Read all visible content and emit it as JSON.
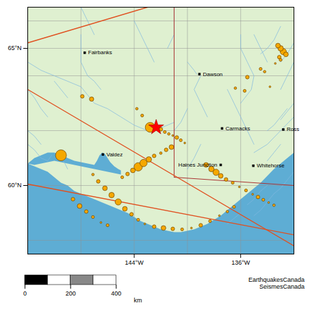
{
  "chart_data": {
    "type": "map",
    "xlim": [
      -152,
      -132
    ],
    "ylim": [
      57.5,
      66.5
    ],
    "xticks": [
      {
        "value": -144,
        "label": "144°W"
      },
      {
        "value": -136,
        "label": "136°W"
      }
    ],
    "yticks": [
      {
        "value": 60,
        "label": "60°N"
      },
      {
        "value": 65,
        "label": "65°N"
      }
    ],
    "land_color": "#dff0d0",
    "water_color": "#5eadd4",
    "fjord_color": "#5eadd4",
    "grid_color": "#909090",
    "fault_color": "#e05020",
    "border_color": "#aa3333",
    "river_color": "#80b8e0",
    "lat_lines": [
      58,
      60,
      62,
      64,
      65,
      66
    ],
    "lon_lines": [
      -152,
      -148,
      -144,
      -140,
      -136,
      -132
    ],
    "water_polygon": [
      [
        -152,
        57.5
      ],
      [
        -152,
        60.8
      ],
      [
        -151.5,
        60.7
      ],
      [
        -151,
        60.6
      ],
      [
        -150.5,
        60.5
      ],
      [
        -150,
        60.3
      ],
      [
        -149.5,
        60.1
      ],
      [
        -149,
        60.0
      ],
      [
        -148.5,
        59.8
      ],
      [
        -148,
        59.7
      ],
      [
        -147.5,
        59.6
      ],
      [
        -147,
        59.5
      ],
      [
        -146.5,
        59.4
      ],
      [
        -146,
        59.3
      ],
      [
        -145.5,
        59.2
      ],
      [
        -145,
        59.1
      ],
      [
        -144.5,
        59.0
      ],
      [
        -144,
        58.85
      ],
      [
        -143.5,
        58.7
      ],
      [
        -143,
        58.6
      ],
      [
        -142.5,
        58.5
      ],
      [
        -142,
        58.4
      ],
      [
        -141.5,
        58.35
      ],
      [
        -141,
        58.3
      ],
      [
        -140.5,
        58.3
      ],
      [
        -140,
        58.35
      ],
      [
        -139.5,
        58.4
      ],
      [
        -139,
        58.5
      ],
      [
        -138.5,
        58.6
      ],
      [
        -138,
        58.75
      ],
      [
        -137.5,
        58.9
      ],
      [
        -137,
        59.1
      ],
      [
        -136.5,
        59.3
      ],
      [
        -136,
        59.5
      ],
      [
        -135.5,
        59.7
      ],
      [
        -135,
        59.9
      ],
      [
        -134.5,
        60.1
      ],
      [
        -134,
        60.35
      ],
      [
        -133.5,
        60.6
      ],
      [
        -133,
        60.8
      ],
      [
        -132.5,
        61.0
      ],
      [
        -132,
        61.2
      ],
      [
        -132,
        57.5
      ]
    ],
    "fjord_polygon": [
      [
        -152,
        60.8
      ],
      [
        -151.5,
        61.0
      ],
      [
        -151,
        61.1
      ],
      [
        -150.5,
        61.2
      ],
      [
        -150,
        61.2
      ],
      [
        -149.5,
        61.1
      ],
      [
        -149,
        61.0
      ],
      [
        -148.5,
        60.9
      ],
      [
        -148,
        60.85
      ],
      [
        -147.5,
        60.8
      ],
      [
        -147,
        60.75
      ],
      [
        -146.8,
        60.9
      ],
      [
        -146.6,
        61.1
      ],
      [
        -146.4,
        61.2
      ],
      [
        -146.2,
        61.15
      ],
      [
        -146.0,
        61.0
      ],
      [
        -145.8,
        60.85
      ],
      [
        -145.5,
        60.7
      ],
      [
        -145.2,
        60.6
      ],
      [
        -145.0,
        60.55
      ],
      [
        -145.0,
        60.4
      ],
      [
        -145.5,
        60.45
      ],
      [
        -146.0,
        60.5
      ],
      [
        -146.5,
        60.55
      ],
      [
        -147.0,
        60.6
      ],
      [
        -147.5,
        60.65
      ],
      [
        -148.0,
        60.7
      ],
      [
        -148.5,
        60.75
      ],
      [
        -149.0,
        60.8
      ],
      [
        -149.5,
        60.85
      ],
      [
        -150.0,
        60.9
      ],
      [
        -150.5,
        60.85
      ],
      [
        -151.0,
        60.8
      ],
      [
        -151.5,
        60.75
      ],
      [
        -152,
        60.8
      ]
    ],
    "fault_lines": [
      {
        "x": [
          -152,
          -143
        ],
        "y": [
          65.2,
          66.5
        ]
      },
      {
        "x": [
          -152,
          -132
        ],
        "y": [
          63.5,
          57.8
        ]
      },
      {
        "x": [
          -152,
          -132
        ],
        "y": [
          60.05,
          58.2
        ]
      }
    ],
    "border_lines": [
      {
        "x": [
          -141,
          -141
        ],
        "y": [
          60.3,
          66.5
        ]
      },
      {
        "x": [
          -132,
          -141
        ],
        "y": [
          60.0,
          60.3
        ]
      }
    ],
    "rivers": [
      [
        [
          -152,
          64.5
        ],
        [
          -151,
          64.2
        ],
        [
          -150,
          64.0
        ],
        [
          -149,
          63.8
        ],
        [
          -148,
          63.6
        ],
        [
          -147.5,
          63.3
        ],
        [
          -147,
          63.0
        ],
        [
          -146,
          62.8
        ],
        [
          -145,
          62.5
        ],
        [
          -144,
          62.2
        ],
        [
          -143,
          62.0
        ],
        [
          -142,
          62.1
        ],
        [
          -141,
          62.3
        ]
      ],
      [
        [
          -148,
          65.5
        ],
        [
          -148,
          64.5
        ],
        [
          -147.5,
          64.0
        ],
        [
          -147,
          63.8
        ],
        [
          -146.5,
          63.5
        ]
      ],
      [
        [
          -137,
          63.5
        ],
        [
          -136.5,
          63.0
        ],
        [
          -136,
          62.5
        ],
        [
          -135.5,
          62.0
        ],
        [
          -135,
          61.5
        ]
      ],
      [
        [
          -139,
          64.0
        ],
        [
          -139.5,
          63.5
        ],
        [
          -139,
          63.0
        ],
        [
          -138.5,
          62.5
        ]
      ],
      [
        [
          -132,
          62.5
        ],
        [
          -133,
          62.0
        ],
        [
          -134,
          61.5
        ],
        [
          -135,
          61.2
        ]
      ],
      [
        [
          -140,
          62.8
        ],
        [
          -140.5,
          62.3
        ],
        [
          -141,
          62.0
        ]
      ],
      [
        [
          -139,
          61.5
        ],
        [
          -139.5,
          61.0
        ],
        [
          -140,
          60.6
        ]
      ],
      [
        [
          -133,
          65.8
        ],
        [
          -133.5,
          65.3
        ],
        [
          -134,
          65.0
        ],
        [
          -134.5,
          64.8
        ]
      ],
      [
        [
          -132,
          65.2
        ],
        [
          -132.5,
          64.8
        ],
        [
          -133,
          64.5
        ]
      ],
      [
        [
          -152,
          63.5
        ],
        [
          -151.5,
          63.2
        ],
        [
          -151,
          62.8
        ],
        [
          -150.5,
          62.5
        ]
      ],
      [
        [
          -152,
          62.0
        ],
        [
          -151.5,
          61.8
        ],
        [
          -151,
          61.5
        ]
      ],
      [
        [
          -150,
          63.8
        ],
        [
          -149.5,
          63.5
        ],
        [
          -149,
          63.2
        ]
      ],
      [
        [
          -140,
          64.5
        ],
        [
          -139.5,
          64.2
        ],
        [
          -139.3,
          64.06
        ]
      ],
      [
        [
          -136,
          65.5
        ],
        [
          -136,
          65.0
        ],
        [
          -135.5,
          64.5
        ],
        [
          -135,
          64.0
        ],
        [
          -135.2,
          63.5
        ],
        [
          -136,
          63.0
        ]
      ],
      [
        [
          -135,
          65.5
        ],
        [
          -134.5,
          65.0
        ],
        [
          -134,
          64.5
        ]
      ],
      [
        [
          -144,
          66.0
        ],
        [
          -143.5,
          65.5
        ],
        [
          -143,
          65.0
        ],
        [
          -142.5,
          64.5
        ]
      ],
      [
        [
          -148,
          66.5
        ],
        [
          -147.5,
          66.0
        ],
        [
          -147,
          65.5
        ]
      ],
      [
        [
          -141,
          66.5
        ],
        [
          -141,
          66.0
        ],
        [
          -141,
          65.5
        ],
        [
          -141.5,
          65.0
        ]
      ],
      [
        [
          -132,
          64.5
        ],
        [
          -132.5,
          64.0
        ],
        [
          -133,
          63.5
        ]
      ],
      [
        [
          -152,
          61.5
        ],
        [
          -151.5,
          61.3
        ],
        [
          -151,
          61.0
        ],
        [
          -150.5,
          60.9
        ],
        [
          -150.2,
          61.1
        ]
      ],
      [
        [
          -149.5,
          61.0
        ],
        [
          -149.2,
          60.8
        ],
        [
          -149.0,
          60.6
        ]
      ],
      [
        [
          -134,
          60.0
        ],
        [
          -134.5,
          59.8
        ],
        [
          -135,
          59.5
        ],
        [
          -135.5,
          59.3
        ]
      ],
      [
        [
          -132,
          60.5
        ],
        [
          -132.5,
          60.2
        ],
        [
          -133,
          59.9
        ],
        [
          -133.5,
          59.7
        ]
      ],
      [
        [
          -133.5,
          59.7
        ],
        [
          -134,
          59.4
        ],
        [
          -134.5,
          59.1
        ],
        [
          -135,
          58.9
        ]
      ],
      [
        [
          -136,
          59.0
        ],
        [
          -136.5,
          58.8
        ],
        [
          -137,
          58.6
        ]
      ],
      [
        [
          -133,
          61.5
        ],
        [
          -133.5,
          61.2
        ],
        [
          -134,
          60.9
        ]
      ],
      [
        [
          -132.5,
          62.8
        ],
        [
          -133,
          62.5
        ],
        [
          -133.5,
          62.2
        ],
        [
          -134,
          62.0
        ]
      ],
      [
        [
          -132,
          63.0
        ],
        [
          -132.5,
          62.7
        ],
        [
          -133,
          62.4
        ]
      ]
    ],
    "earthquakes": [
      {
        "lon": -147.9,
        "lat": 63.25,
        "mag": 5.5
      },
      {
        "lon": -147.2,
        "lat": 63.15,
        "mag": 5.7
      },
      {
        "lon": -143.8,
        "lat": 62.8,
        "mag": 5.2
      },
      {
        "lon": -143.4,
        "lat": 62.55,
        "mag": 5.3
      },
      {
        "lon": -142.8,
        "lat": 62.12,
        "mag": 7.2
      },
      {
        "lon": -142.3,
        "lat": 62.1,
        "mag": 5.8
      },
      {
        "lon": -142.0,
        "lat": 62.05,
        "mag": 5.5
      },
      {
        "lon": -141.7,
        "lat": 61.95,
        "mag": 5.3
      },
      {
        "lon": -141.4,
        "lat": 61.88,
        "mag": 5.2
      },
      {
        "lon": -141.1,
        "lat": 61.82,
        "mag": 5.0
      },
      {
        "lon": -140.8,
        "lat": 61.75,
        "mag": 5.5
      },
      {
        "lon": -140.5,
        "lat": 61.65,
        "mag": 5.3
      },
      {
        "lon": -140.2,
        "lat": 61.55,
        "mag": 5.0
      },
      {
        "lon": -141.2,
        "lat": 61.4,
        "mag": 5.8
      },
      {
        "lon": -141.6,
        "lat": 61.3,
        "mag": 5.5
      },
      {
        "lon": -142.0,
        "lat": 61.18,
        "mag": 5.2
      },
      {
        "lon": -142.5,
        "lat": 61.08,
        "mag": 5.5
      },
      {
        "lon": -142.9,
        "lat": 60.95,
        "mag": 6.0
      },
      {
        "lon": -143.3,
        "lat": 60.82,
        "mag": 6.5
      },
      {
        "lon": -143.7,
        "lat": 60.68,
        "mag": 6.8
      },
      {
        "lon": -144.1,
        "lat": 60.55,
        "mag": 5.8
      },
      {
        "lon": -144.5,
        "lat": 60.42,
        "mag": 5.5
      },
      {
        "lon": -144.9,
        "lat": 60.3,
        "mag": 5.3
      },
      {
        "lon": -138.6,
        "lat": 60.75,
        "mag": 5.8
      },
      {
        "lon": -138.2,
        "lat": 60.6,
        "mag": 6.0
      },
      {
        "lon": -137.85,
        "lat": 60.48,
        "mag": 6.2
      },
      {
        "lon": -137.5,
        "lat": 60.35,
        "mag": 5.8
      },
      {
        "lon": -137.1,
        "lat": 60.22,
        "mag": 5.5
      },
      {
        "lon": -136.6,
        "lat": 60.1,
        "mag": 5.3
      },
      {
        "lon": -136.1,
        "lat": 59.95,
        "mag": 5.0
      },
      {
        "lon": -135.6,
        "lat": 59.82,
        "mag": 5.3
      },
      {
        "lon": -135.1,
        "lat": 59.68,
        "mag": 5.0
      },
      {
        "lon": -134.7,
        "lat": 59.58,
        "mag": 5.5
      },
      {
        "lon": -134.3,
        "lat": 59.48,
        "mag": 5.3
      },
      {
        "lon": -133.9,
        "lat": 59.38,
        "mag": 5.0
      },
      {
        "lon": -133.5,
        "lat": 59.28,
        "mag": 5.2
      },
      {
        "lon": -149.5,
        "lat": 61.1,
        "mag": 7.5
      },
      {
        "lon": -147.1,
        "lat": 60.4,
        "mag": 5.2
      },
      {
        "lon": -146.7,
        "lat": 60.15,
        "mag": 5.5
      },
      {
        "lon": -146.2,
        "lat": 59.9,
        "mag": 5.8
      },
      {
        "lon": -145.7,
        "lat": 59.65,
        "mag": 6.0
      },
      {
        "lon": -145.2,
        "lat": 59.4,
        "mag": 6.2
      },
      {
        "lon": -144.7,
        "lat": 59.15,
        "mag": 5.8
      },
      {
        "lon": -144.2,
        "lat": 58.95,
        "mag": 5.5
      },
      {
        "lon": -143.7,
        "lat": 58.75,
        "mag": 5.3
      },
      {
        "lon": -143.2,
        "lat": 58.6,
        "mag": 5.0
      },
      {
        "lon": -142.5,
        "lat": 58.5,
        "mag": 5.5
      },
      {
        "lon": -141.8,
        "lat": 58.45,
        "mag": 5.8
      },
      {
        "lon": -141.1,
        "lat": 58.42,
        "mag": 5.5
      },
      {
        "lon": -140.4,
        "lat": 58.4,
        "mag": 5.3
      },
      {
        "lon": -139.7,
        "lat": 58.45,
        "mag": 5.0
      },
      {
        "lon": -139.0,
        "lat": 58.55,
        "mag": 5.5
      },
      {
        "lon": -138.3,
        "lat": 58.7,
        "mag": 5.3
      },
      {
        "lon": -137.6,
        "lat": 58.9,
        "mag": 5.0
      },
      {
        "lon": -137.0,
        "lat": 59.05,
        "mag": 5.2
      },
      {
        "lon": -136.5,
        "lat": 59.22,
        "mag": 5.3
      },
      {
        "lon": -148.6,
        "lat": 59.5,
        "mag": 5.5
      },
      {
        "lon": -148.1,
        "lat": 59.25,
        "mag": 5.8
      },
      {
        "lon": -147.6,
        "lat": 59.05,
        "mag": 5.5
      },
      {
        "lon": -147.1,
        "lat": 58.85,
        "mag": 5.3
      },
      {
        "lon": -146.5,
        "lat": 58.65,
        "mag": 5.0
      },
      {
        "lon": -146.0,
        "lat": 58.55,
        "mag": 5.3
      },
      {
        "lon": -133.2,
        "lat": 65.1,
        "mag": 5.8
      },
      {
        "lon": -133.0,
        "lat": 65.0,
        "mag": 6.0
      },
      {
        "lon": -132.8,
        "lat": 64.88,
        "mag": 6.2
      },
      {
        "lon": -132.6,
        "lat": 64.78,
        "mag": 5.8
      },
      {
        "lon": -133.1,
        "lat": 64.68,
        "mag": 5.5
      },
      {
        "lon": -133.0,
        "lat": 64.58,
        "mag": 5.3
      },
      {
        "lon": -133.4,
        "lat": 64.45,
        "mag": 5.0
      },
      {
        "lon": -134.2,
        "lat": 64.15,
        "mag": 5.2
      },
      {
        "lon": -135.5,
        "lat": 63.95,
        "mag": 5.5
      },
      {
        "lon": -133.8,
        "lat": 63.6,
        "mag": 5.0
      },
      {
        "lon": -136.4,
        "lat": 63.55,
        "mag": 5.2
      },
      {
        "lon": -135.7,
        "lat": 63.45,
        "mag": 5.3
      },
      {
        "lon": -134.5,
        "lat": 64.25,
        "mag": 5.3
      }
    ],
    "size_domain": [
      4.5,
      7.5
    ],
    "eq_color": "#f5a800",
    "eq_edge_color": "#6b4400",
    "star_epicenter": {
      "lon": -142.35,
      "lat": 62.12
    },
    "star_color": "red",
    "star_edge_color": "#8b0000",
    "city_color": "black",
    "city_labels": [
      {
        "name": "Fairbanks",
        "lon": -147.72,
        "lat": 64.84
      },
      {
        "name": "Dawson",
        "lon": -139.1,
        "lat": 64.06
      },
      {
        "name": "Valdez",
        "lon": -146.35,
        "lat": 61.13
      },
      {
        "name": "Carmacks",
        "lon": -137.4,
        "lat": 62.08
      },
      {
        "name": "Ross",
        "lon": -132.8,
        "lat": 62.04
      },
      {
        "name": "Haines Junction",
        "lon": -137.5,
        "lat": 60.75
      },
      {
        "name": "Whitehorse",
        "lon": -135.05,
        "lat": 60.72
      }
    ],
    "scale_bar": {
      "xlim": [
        0,
        480
      ],
      "ticks": [
        0,
        200,
        400
      ],
      "label": "km",
      "segments": [
        {
          "start": 0,
          "end": 100,
          "color": "black"
        },
        {
          "start": 100,
          "end": 200,
          "color": "white"
        },
        {
          "start": 200,
          "end": 300,
          "color": "#888888"
        },
        {
          "start": 300,
          "end": 400,
          "color": "white"
        }
      ]
    },
    "credit": "EarthquakesCanada\nSeismesCanada"
  }
}
